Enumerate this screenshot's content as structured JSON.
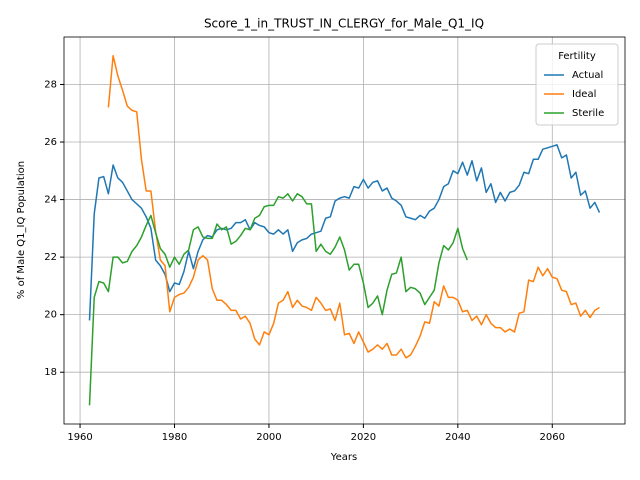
{
  "chart_data": {
    "type": "line",
    "title": "Score_1_in_TRUST_IN_CLERGY_for_Male_Q1_IQ",
    "x_label": "Years",
    "y_label": "% of Male Q1_IQ Population",
    "legend_title": "Fertility",
    "legend_position": "upper right",
    "grid": true,
    "xlim": [
      1956.6,
      2075.4
    ],
    "xticks": [
      1960,
      1980,
      2000,
      2020,
      2040,
      2060
    ],
    "ylim": [
      16.2,
      29.65
    ],
    "yticks": [
      18,
      20,
      22,
      24,
      26,
      28
    ],
    "x": [
      1962,
      1963,
      1964,
      1965,
      1966,
      1967,
      1968,
      1969,
      1970,
      1971,
      1972,
      1973,
      1974,
      1975,
      1976,
      1977,
      1978,
      1979,
      1980,
      1981,
      1982,
      1983,
      1984,
      1985,
      1986,
      1987,
      1988,
      1989,
      1990,
      1991,
      1992,
      1993,
      1994,
      1995,
      1996,
      1997,
      1998,
      1999,
      2000,
      2001,
      2002,
      2003,
      2004,
      2005,
      2006,
      2007,
      2008,
      2009,
      2010,
      2011,
      2012,
      2013,
      2014,
      2015,
      2016,
      2017,
      2018,
      2019,
      2020,
      2021,
      2022,
      2023,
      2024,
      2025,
      2026,
      2027,
      2028,
      2029,
      2030,
      2031,
      2032,
      2033,
      2034,
      2035,
      2036,
      2037,
      2038,
      2039,
      2040,
      2041,
      2042,
      2043,
      2044,
      2045,
      2046,
      2047,
      2048,
      2049,
      2050,
      2051,
      2052,
      2053,
      2054,
      2055,
      2056,
      2057,
      2058,
      2059,
      2060,
      2061,
      2062,
      2063,
      2064,
      2065,
      2066,
      2067,
      2068,
      2069,
      2070
    ],
    "series": [
      {
        "name": "Actual",
        "color": "#1f77b4",
        "values": [
          19.8,
          23.5,
          24.75,
          24.8,
          24.2,
          25.2,
          24.75,
          24.6,
          24.3,
          24.0,
          23.85,
          23.7,
          23.4,
          23.0,
          21.9,
          21.7,
          21.4,
          20.8,
          21.1,
          21.05,
          21.5,
          22.2,
          21.6,
          22.2,
          22.6,
          22.75,
          22.7,
          22.95,
          23.0,
          22.95,
          23.0,
          23.2,
          23.2,
          23.3,
          22.95,
          23.2,
          23.1,
          23.05,
          22.85,
          22.8,
          22.95,
          22.8,
          22.95,
          22.2,
          22.5,
          22.6,
          22.65,
          22.8,
          22.85,
          22.9,
          23.35,
          23.4,
          23.95,
          24.05,
          24.1,
          24.05,
          24.45,
          24.4,
          24.7,
          24.4,
          24.6,
          24.65,
          24.3,
          24.4,
          24.05,
          23.95,
          23.8,
          23.4,
          23.35,
          23.3,
          23.45,
          23.35,
          23.6,
          23.7,
          24.0,
          24.45,
          24.55,
          25.0,
          24.9,
          25.3,
          24.85,
          25.35,
          24.65,
          25.1,
          24.25,
          24.55,
          23.9,
          24.25,
          23.95,
          24.25,
          24.3,
          24.5,
          24.95,
          24.9,
          25.4,
          25.4,
          25.75,
          25.8,
          25.85,
          25.9,
          25.45,
          25.55,
          24.75,
          24.95,
          24.15,
          24.3,
          23.7,
          23.9,
          23.55
        ]
      },
      {
        "name": "Ideal",
        "color": "#ff7f0e",
        "values": [
          null,
          null,
          null,
          null,
          27.2,
          29.0,
          28.3,
          27.8,
          27.25,
          27.1,
          27.05,
          25.4,
          24.3,
          24.3,
          22.9,
          21.9,
          21.7,
          20.1,
          20.6,
          20.7,
          20.75,
          20.95,
          21.3,
          21.9,
          22.05,
          21.9,
          20.9,
          20.5,
          20.5,
          20.35,
          20.15,
          20.15,
          19.85,
          19.95,
          19.7,
          19.15,
          18.95,
          19.4,
          19.3,
          19.7,
          20.4,
          20.5,
          20.8,
          20.25,
          20.5,
          20.3,
          20.25,
          20.15,
          20.6,
          20.4,
          20.15,
          20.2,
          19.8,
          20.4,
          19.3,
          19.35,
          19.0,
          19.4,
          19.05,
          18.7,
          18.8,
          18.95,
          18.8,
          19.0,
          18.6,
          18.6,
          18.8,
          18.5,
          18.6,
          18.9,
          19.25,
          19.75,
          19.7,
          20.45,
          20.3,
          21.0,
          20.6,
          20.6,
          20.5,
          20.1,
          20.15,
          19.8,
          19.95,
          19.65,
          20.0,
          19.7,
          19.55,
          19.55,
          19.4,
          19.5,
          19.4,
          20.05,
          20.1,
          21.2,
          21.15,
          21.65,
          21.35,
          21.6,
          21.3,
          21.25,
          20.85,
          20.8,
          20.35,
          20.4,
          19.95,
          20.15,
          19.9,
          20.15,
          20.25
        ]
      },
      {
        "name": "Sterile",
        "color": "#2ca02c",
        "values": [
          16.85,
          20.6,
          21.15,
          21.1,
          20.8,
          22.0,
          22.0,
          21.8,
          21.85,
          22.2,
          22.4,
          22.7,
          23.1,
          23.45,
          22.85,
          22.3,
          22.1,
          21.65,
          22.0,
          21.75,
          22.1,
          22.25,
          22.95,
          23.05,
          22.7,
          22.65,
          22.65,
          23.15,
          22.95,
          23.05,
          22.45,
          22.55,
          22.75,
          23.0,
          22.95,
          23.35,
          23.45,
          23.75,
          23.8,
          23.8,
          24.1,
          24.05,
          24.2,
          23.95,
          24.2,
          24.1,
          23.85,
          23.85,
          22.2,
          22.45,
          22.2,
          22.1,
          22.35,
          22.7,
          22.25,
          21.55,
          21.75,
          21.75,
          21.1,
          20.25,
          20.4,
          20.65,
          20.0,
          20.85,
          21.4,
          21.45,
          22.0,
          20.8,
          20.95,
          20.9,
          20.75,
          20.35,
          20.6,
          20.85,
          21.8,
          22.4,
          22.25,
          22.5,
          23.0,
          22.3,
          21.9,
          null,
          null,
          null,
          null,
          null,
          null,
          null,
          null,
          null,
          null,
          null,
          null,
          null,
          null,
          null,
          null,
          null,
          null,
          null,
          null,
          null,
          null,
          null,
          null,
          null,
          null,
          null,
          null
        ]
      }
    ]
  }
}
